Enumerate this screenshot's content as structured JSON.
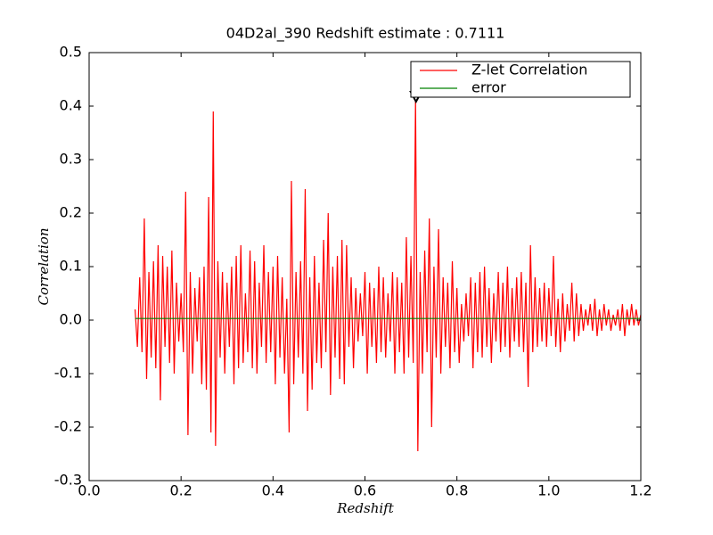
{
  "chart_data": {
    "type": "line",
    "title": "04D2al_390 Redshift estimate : 0.7111",
    "xlabel": "Redshift",
    "ylabel": "Correlation",
    "xlim": [
      0,
      1.2
    ],
    "ylim": [
      -0.3,
      0.5
    ],
    "xticks": [
      {
        "value": 0,
        "label": "0.0"
      },
      0.2,
      0.4,
      0.6,
      0.8,
      {
        "value": 1,
        "label": "1.0"
      },
      1.2
    ],
    "yticks": [
      -0.3,
      -0.2,
      -0.1,
      {
        "value": 0,
        "label": "0.0"
      },
      0.1,
      0.2,
      0.3,
      0.4,
      0.5
    ],
    "legend": "upper right",
    "marker": {
      "x": 0.7111,
      "y": 0.415
    },
    "series": [
      {
        "name": "Z-let Correlation",
        "color": "#ff0000",
        "x": [
          0.1,
          0.105,
          0.11,
          0.115,
          0.12,
          0.125,
          0.13,
          0.135,
          0.14,
          0.145,
          0.15,
          0.155,
          0.16,
          0.165,
          0.17,
          0.175,
          0.18,
          0.185,
          0.19,
          0.195,
          0.2,
          0.205,
          0.21,
          0.215,
          0.22,
          0.225,
          0.23,
          0.235,
          0.24,
          0.245,
          0.25,
          0.255,
          0.26,
          0.265,
          0.27,
          0.275,
          0.28,
          0.285,
          0.29,
          0.295,
          0.3,
          0.305,
          0.31,
          0.315,
          0.32,
          0.325,
          0.33,
          0.335,
          0.34,
          0.345,
          0.35,
          0.355,
          0.36,
          0.365,
          0.37,
          0.375,
          0.38,
          0.385,
          0.39,
          0.395,
          0.4,
          0.405,
          0.41,
          0.415,
          0.42,
          0.425,
          0.43,
          0.435,
          0.44,
          0.445,
          0.45,
          0.455,
          0.46,
          0.465,
          0.47,
          0.475,
          0.48,
          0.485,
          0.49,
          0.495,
          0.5,
          0.505,
          0.51,
          0.515,
          0.52,
          0.525,
          0.53,
          0.535,
          0.54,
          0.545,
          0.55,
          0.555,
          0.56,
          0.565,
          0.57,
          0.575,
          0.58,
          0.585,
          0.59,
          0.595,
          0.6,
          0.605,
          0.61,
          0.615,
          0.62,
          0.625,
          0.63,
          0.635,
          0.64,
          0.645,
          0.65,
          0.655,
          0.66,
          0.665,
          0.67,
          0.675,
          0.68,
          0.685,
          0.69,
          0.695,
          0.7,
          0.705,
          0.71,
          0.715,
          0.72,
          0.725,
          0.73,
          0.735,
          0.74,
          0.745,
          0.75,
          0.755,
          0.76,
          0.765,
          0.77,
          0.775,
          0.78,
          0.785,
          0.79,
          0.795,
          0.8,
          0.805,
          0.81,
          0.815,
          0.82,
          0.825,
          0.83,
          0.835,
          0.84,
          0.845,
          0.85,
          0.855,
          0.86,
          0.865,
          0.87,
          0.875,
          0.88,
          0.885,
          0.89,
          0.895,
          0.9,
          0.905,
          0.91,
          0.915,
          0.92,
          0.925,
          0.93,
          0.935,
          0.94,
          0.945,
          0.95,
          0.955,
          0.96,
          0.965,
          0.97,
          0.975,
          0.98,
          0.985,
          0.99,
          0.995,
          1.0,
          1.005,
          1.01,
          1.015,
          1.02,
          1.025,
          1.03,
          1.035,
          1.04,
          1.045,
          1.05,
          1.055,
          1.06,
          1.065,
          1.07,
          1.075,
          1.08,
          1.085,
          1.09,
          1.095,
          1.1,
          1.105,
          1.11,
          1.115,
          1.12,
          1.125,
          1.13,
          1.135,
          1.14,
          1.145,
          1.15,
          1.155,
          1.16,
          1.165,
          1.17,
          1.175,
          1.18,
          1.185,
          1.19,
          1.195,
          1.2
        ],
        "values": [
          0.02,
          -0.05,
          0.08,
          -0.06,
          0.19,
          -0.11,
          0.09,
          -0.07,
          0.11,
          -0.09,
          0.14,
          -0.15,
          0.12,
          -0.05,
          0.1,
          -0.08,
          0.13,
          -0.1,
          0.07,
          -0.04,
          0.05,
          -0.06,
          0.24,
          -0.215,
          0.09,
          -0.1,
          0.06,
          -0.04,
          0.08,
          -0.12,
          0.1,
          -0.13,
          0.23,
          -0.21,
          0.39,
          -0.235,
          0.11,
          -0.07,
          0.09,
          -0.1,
          0.07,
          -0.05,
          0.1,
          -0.12,
          0.12,
          -0.09,
          0.14,
          -0.08,
          0.05,
          -0.06,
          0.13,
          -0.09,
          0.11,
          -0.1,
          0.07,
          -0.05,
          0.14,
          -0.08,
          0.09,
          -0.06,
          0.1,
          -0.12,
          0.12,
          -0.07,
          0.08,
          -0.1,
          0.04,
          -0.21,
          0.26,
          -0.12,
          0.09,
          -0.07,
          0.11,
          -0.1,
          0.245,
          -0.17,
          0.08,
          -0.13,
          0.12,
          -0.08,
          0.07,
          -0.09,
          0.15,
          -0.06,
          0.2,
          -0.14,
          0.1,
          -0.07,
          0.12,
          -0.11,
          0.15,
          -0.12,
          0.14,
          -0.05,
          0.08,
          -0.09,
          0.06,
          -0.04,
          0.05,
          -0.03,
          0.09,
          -0.1,
          0.07,
          -0.05,
          0.06,
          -0.08,
          0.1,
          -0.06,
          0.08,
          -0.07,
          0.05,
          -0.04,
          0.09,
          -0.1,
          0.08,
          -0.06,
          0.07,
          -0.1,
          0.155,
          -0.07,
          0.12,
          -0.08,
          0.415,
          -0.245,
          0.09,
          -0.1,
          0.13,
          -0.06,
          0.19,
          -0.2,
          0.1,
          -0.07,
          0.17,
          -0.1,
          0.08,
          -0.05,
          0.07,
          -0.09,
          0.11,
          -0.06,
          0.06,
          -0.08,
          0.03,
          -0.04,
          0.05,
          -0.03,
          0.08,
          -0.09,
          0.07,
          -0.06,
          0.09,
          -0.07,
          0.1,
          -0.05,
          0.06,
          -0.08,
          0.05,
          -0.04,
          0.09,
          -0.06,
          0.07,
          -0.05,
          0.1,
          -0.07,
          0.06,
          -0.04,
          0.08,
          -0.05,
          0.09,
          -0.06,
          0.07,
          -0.125,
          0.14,
          -0.06,
          0.08,
          -0.05,
          0.06,
          -0.04,
          0.07,
          -0.05,
          0.06,
          -0.03,
          0.12,
          -0.05,
          0.04,
          -0.06,
          0.05,
          -0.04,
          0.03,
          -0.02,
          0.07,
          -0.04,
          0.05,
          -0.03,
          0.03,
          -0.02,
          0.02,
          -0.01,
          0.03,
          -0.02,
          0.04,
          -0.03,
          0.02,
          -0.02,
          0.03,
          -0.01,
          0.02,
          -0.02,
          0.01,
          -0.01,
          0.02,
          -0.02,
          0.03,
          -0.03,
          0.02,
          -0.01,
          0.03,
          -0.01,
          0.02,
          -0.01,
          0.01
        ]
      },
      {
        "name": "error",
        "color": "#008000",
        "x": [
          0.1,
          1.2
        ],
        "values": [
          0.003,
          0.003
        ]
      }
    ]
  }
}
